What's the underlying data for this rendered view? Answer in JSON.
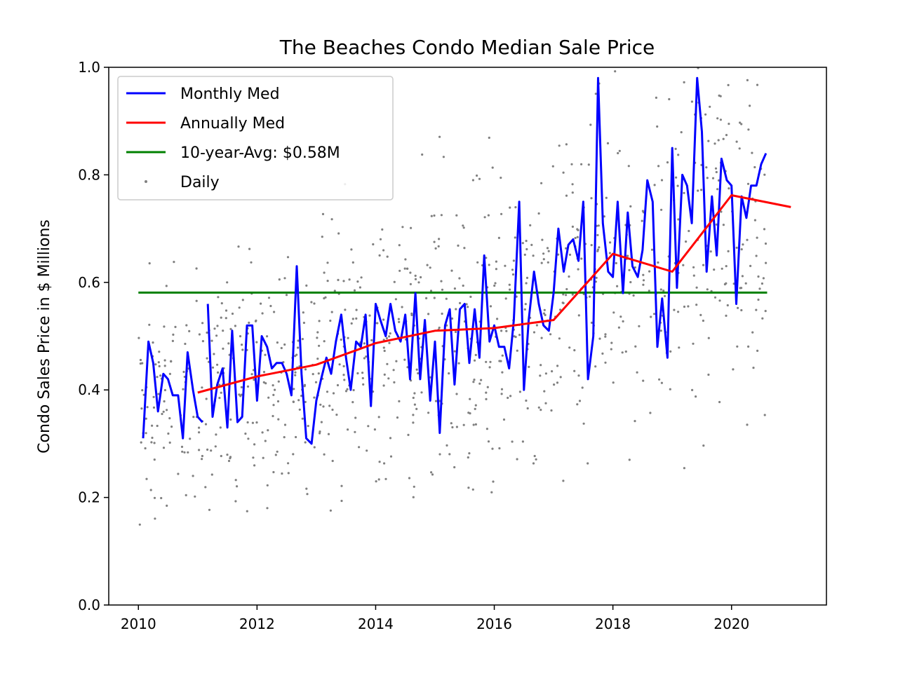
{
  "chart_data": {
    "type": "line",
    "title": "The Beaches Condo Median Sale Price",
    "xlabel": "",
    "ylabel": "Condo Sales Price in $ Millions",
    "xlim": [
      2009.5,
      2021.6
    ],
    "ylim": [
      0.0,
      1.0
    ],
    "xticks": [
      2010,
      2012,
      2014,
      2016,
      2018,
      2020
    ],
    "yticks": [
      "0.0",
      "0.2",
      "0.4",
      "0.6",
      "0.8",
      "1.0"
    ],
    "grid": false,
    "legend_position": "top-left",
    "legend": [
      "Monthly Med",
      "Annually Med",
      "10-year-Avg: $0.58M",
      "Daily"
    ],
    "series": [
      {
        "name": "Monthly Med",
        "color": "#0000ff",
        "segments": [
          {
            "x": [
              2010.08,
              2010.17,
              2010.25,
              2010.33,
              2010.42,
              2010.5,
              2010.58,
              2010.67,
              2010.75,
              2010.83,
              2010.92,
              2011.0,
              2011.08
            ],
            "y": [
              0.31,
              0.49,
              0.45,
              0.36,
              0.43,
              0.42,
              0.39,
              0.39,
              0.31,
              0.47,
              0.4,
              0.35,
              0.34
            ]
          },
          {
            "x": [
              2011.17,
              2011.25,
              2011.33,
              2011.42,
              2011.5,
              2011.58,
              2011.67,
              2011.75,
              2011.83,
              2011.92,
              2012.0,
              2012.08,
              2012.17,
              2012.25,
              2012.33,
              2012.42,
              2012.5,
              2012.58,
              2012.67,
              2012.75,
              2012.83,
              2012.92,
              2013.0,
              2013.08,
              2013.17,
              2013.25,
              2013.33,
              2013.42,
              2013.5,
              2013.58,
              2013.67,
              2013.75,
              2013.83,
              2013.92,
              2014.0,
              2014.08,
              2014.17,
              2014.25,
              2014.33,
              2014.42,
              2014.5,
              2014.58,
              2014.67,
              2014.75,
              2014.83,
              2014.92,
              2015.0,
              2015.08,
              2015.17,
              2015.25,
              2015.33,
              2015.42,
              2015.5,
              2015.58,
              2015.67,
              2015.75,
              2015.83,
              2015.92,
              2016.0,
              2016.08,
              2016.17,
              2016.25,
              2016.33,
              2016.42,
              2016.5,
              2016.58,
              2016.67,
              2016.75,
              2016.83,
              2016.92,
              2017.0,
              2017.08,
              2017.17,
              2017.25,
              2017.33,
              2017.42,
              2017.5,
              2017.58,
              2017.67,
              2017.75,
              2017.83,
              2017.92,
              2018.0,
              2018.08,
              2018.17,
              2018.25,
              2018.33,
              2018.42,
              2018.5,
              2018.58,
              2018.67,
              2018.75,
              2018.83,
              2018.92,
              2019.0,
              2019.08,
              2019.17,
              2019.25,
              2019.33,
              2019.42,
              2019.5,
              2019.58,
              2019.67,
              2019.75,
              2019.83,
              2019.92,
              2020.0,
              2020.08,
              2020.17,
              2020.25,
              2020.33,
              2020.42,
              2020.5,
              2020.58
            ],
            "y": [
              0.56,
              0.35,
              0.41,
              0.44,
              0.33,
              0.51,
              0.34,
              0.35,
              0.52,
              0.52,
              0.38,
              0.5,
              0.48,
              0.44,
              0.45,
              0.45,
              0.43,
              0.39,
              0.63,
              0.43,
              0.31,
              0.3,
              0.38,
              0.42,
              0.46,
              0.43,
              0.49,
              0.54,
              0.46,
              0.4,
              0.49,
              0.48,
              0.54,
              0.37,
              0.56,
              0.53,
              0.5,
              0.56,
              0.51,
              0.49,
              0.54,
              0.42,
              0.58,
              0.42,
              0.53,
              0.38,
              0.49,
              0.32,
              0.52,
              0.55,
              0.41,
              0.55,
              0.56,
              0.45,
              0.55,
              0.46,
              0.65,
              0.49,
              0.52,
              0.48,
              0.48,
              0.44,
              0.53,
              0.75,
              0.4,
              0.53,
              0.62,
              0.56,
              0.52,
              0.51,
              0.58,
              0.7,
              0.62,
              0.67,
              0.68,
              0.64,
              0.75,
              0.42,
              0.5,
              0.98,
              0.71,
              0.62,
              0.61,
              0.75,
              0.58,
              0.73,
              0.63,
              0.61,
              0.66,
              0.79,
              0.75,
              0.48,
              0.57,
              0.46,
              0.85,
              0.59,
              0.8,
              0.78,
              0.71,
              0.98,
              0.88,
              0.62,
              0.76,
              0.65,
              0.83,
              0.79,
              0.78,
              0.56,
              0.76,
              0.72,
              0.78,
              0.78,
              0.82,
              0.84
            ]
          }
        ]
      },
      {
        "name": "Annually Med",
        "color": "#ff0000",
        "x": [
          2011,
          2012,
          2013,
          2014,
          2015,
          2016,
          2017,
          2018,
          2019,
          2020,
          2021
        ],
        "y": [
          0.395,
          0.425,
          0.447,
          0.487,
          0.51,
          0.515,
          0.53,
          0.653,
          0.62,
          0.762,
          0.74
        ]
      },
      {
        "name": "10-year-Avg: $0.58M",
        "color": "#008000",
        "x": [
          2010,
          2020.6
        ],
        "y": [
          0.581,
          0.581
        ]
      },
      {
        "name": "Daily",
        "color": "#808080",
        "type": "scatter",
        "seed": 20100101,
        "count": 950,
        "x_range": [
          2010.0,
          2020.6
        ],
        "note_points_per_year": 90
      }
    ]
  }
}
